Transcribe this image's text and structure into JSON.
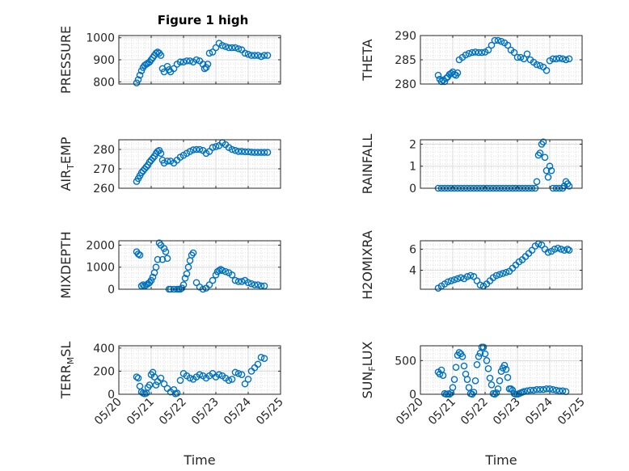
{
  "figure": {
    "title": "Figure 1 high"
  },
  "chart_data": [
    {
      "type": "scatter",
      "title": "Figure 1 high",
      "ylabel": "PRESSURE",
      "xlabel": "",
      "ylim": [
        790,
        1010
      ],
      "yticks": [
        800,
        900,
        1000
      ],
      "ytick_labels": [
        "800",
        "900",
        "1000"
      ],
      "xlim": [
        0,
        5
      ],
      "xtick_labels": [],
      "x": [
        0.55,
        0.6,
        0.65,
        0.7,
        0.75,
        0.8,
        0.85,
        0.9,
        0.95,
        1.0,
        1.05,
        1.1,
        1.15,
        1.2,
        1.25,
        1.3,
        1.35,
        1.4,
        1.5,
        1.55,
        1.6,
        1.7,
        1.8,
        1.9,
        2.0,
        2.1,
        2.2,
        2.3,
        2.4,
        2.5,
        2.6,
        2.65,
        2.7,
        2.75,
        2.8,
        2.9,
        3.0,
        3.1,
        3.2,
        3.3,
        3.4,
        3.5,
        3.6,
        3.7,
        3.8,
        3.9,
        4.0,
        4.1,
        4.2,
        4.3,
        4.4,
        4.5,
        4.6
      ],
      "y": [
        795,
        810,
        830,
        850,
        865,
        875,
        880,
        885,
        890,
        900,
        910,
        920,
        930,
        935,
        930,
        920,
        860,
        845,
        870,
        855,
        845,
        860,
        880,
        890,
        890,
        895,
        895,
        890,
        900,
        895,
        880,
        860,
        865,
        880,
        930,
        935,
        955,
        975,
        965,
        960,
        955,
        955,
        955,
        950,
        945,
        930,
        925,
        920,
        920,
        920,
        915,
        920,
        920
      ],
      "series_name": "",
      "grid": true,
      "minor_grid": true
    },
    {
      "type": "scatter",
      "title": "",
      "ylabel": "THETA",
      "xlabel": "",
      "ylim": [
        280,
        290
      ],
      "yticks": [
        280,
        285,
        290
      ],
      "ytick_labels": [
        "280",
        "285",
        "290"
      ],
      "xlim": [
        0,
        5
      ],
      "xtick_labels": [],
      "x": [
        0.55,
        0.6,
        0.65,
        0.7,
        0.75,
        0.8,
        0.85,
        0.9,
        0.95,
        1.0,
        1.05,
        1.1,
        1.15,
        1.2,
        1.3,
        1.4,
        1.5,
        1.6,
        1.7,
        1.8,
        1.9,
        2.0,
        2.1,
        2.2,
        2.3,
        2.4,
        2.5,
        2.6,
        2.7,
        2.8,
        2.9,
        3.0,
        3.1,
        3.2,
        3.3,
        3.4,
        3.5,
        3.6,
        3.7,
        3.8,
        3.9,
        4.0,
        4.1,
        4.2,
        4.3,
        4.4,
        4.5,
        4.6
      ],
      "y": [
        281.8,
        281,
        280.5,
        280.8,
        280.5,
        281.2,
        281.5,
        282,
        282.2,
        282.5,
        282,
        281.8,
        282.3,
        285,
        285.5,
        286,
        286.3,
        286.5,
        286.6,
        286.5,
        286.5,
        286.6,
        287,
        288,
        289,
        289,
        288.8,
        288.5,
        288,
        287,
        286.5,
        285.5,
        285.5,
        285.2,
        286.2,
        285,
        284.5,
        284,
        283.8,
        283.5,
        282.8,
        284.8,
        285.2,
        285.2,
        285.3,
        285.2,
        285,
        285.2
      ],
      "series_name": "",
      "grid": true,
      "minor_grid": true
    },
    {
      "type": "scatter",
      "title": "",
      "ylabel": "AIR_TEMP",
      "ylabel_main": "AIR",
      "ylabel_sub": "T",
      "ylabel_rest": "EMP",
      "xlabel": "",
      "ylim": [
        260,
        285
      ],
      "yticks": [
        260,
        270,
        280
      ],
      "ytick_labels": [
        "260",
        "270",
        "280"
      ],
      "xlim": [
        0,
        5
      ],
      "xtick_labels": [],
      "x": [
        0.55,
        0.6,
        0.65,
        0.7,
        0.75,
        0.8,
        0.85,
        0.9,
        0.95,
        1.0,
        1.05,
        1.1,
        1.15,
        1.2,
        1.25,
        1.3,
        1.35,
        1.4,
        1.5,
        1.6,
        1.7,
        1.8,
        1.9,
        2.0,
        2.1,
        2.2,
        2.3,
        2.4,
        2.5,
        2.6,
        2.7,
        2.8,
        2.9,
        3.0,
        3.1,
        3.2,
        3.3,
        3.4,
        3.5,
        3.6,
        3.7,
        3.8,
        3.9,
        4.0,
        4.1,
        4.2,
        4.3,
        4.4,
        4.5,
        4.6
      ],
      "y": [
        263.5,
        265,
        266.5,
        268,
        269,
        270,
        271,
        272,
        273.5,
        274.5,
        275.5,
        276.5,
        278,
        279,
        279.5,
        278,
        274.5,
        273,
        274,
        274,
        273,
        274.5,
        276,
        277,
        278,
        279,
        279.8,
        280,
        280,
        279.5,
        278,
        279,
        281,
        281.5,
        282,
        283.5,
        282.5,
        281,
        280,
        279.5,
        279,
        279,
        278.8,
        278.8,
        278.6,
        278.5,
        278.5,
        278.5,
        278.5,
        278.5
      ],
      "series_name": "",
      "grid": true,
      "minor_grid": true
    },
    {
      "type": "scatter",
      "title": "",
      "ylabel": "RAINFALL",
      "xlabel": "",
      "ylim": [
        0,
        2.2
      ],
      "yticks": [
        0,
        1,
        2
      ],
      "ytick_labels": [
        "0",
        "1",
        "2"
      ],
      "xlim": [
        0,
        5
      ],
      "xtick_labels": [],
      "x": [
        0.55,
        0.65,
        0.75,
        0.85,
        0.95,
        1.05,
        1.15,
        1.25,
        1.35,
        1.45,
        1.55,
        1.65,
        1.75,
        1.85,
        1.95,
        2.05,
        2.15,
        2.25,
        2.35,
        2.45,
        2.55,
        2.65,
        2.75,
        2.85,
        2.95,
        3.05,
        3.15,
        3.25,
        3.35,
        3.45,
        3.55,
        3.6,
        3.65,
        3.7,
        3.75,
        3.8,
        3.85,
        3.9,
        3.95,
        4.0,
        4.05,
        4.1,
        4.2,
        4.3,
        4.4,
        4.45,
        4.5,
        4.55,
        4.6
      ],
      "y": [
        0,
        0,
        0,
        0,
        0,
        0,
        0,
        0,
        0,
        0,
        0,
        0,
        0,
        0,
        0,
        0,
        0,
        0,
        0,
        0,
        0,
        0,
        0,
        0,
        0,
        0,
        0,
        0,
        0,
        0,
        0,
        0.3,
        1.5,
        1.6,
        2.0,
        2.1,
        1.4,
        0.8,
        0.5,
        1.0,
        0.8,
        0,
        0,
        0,
        0,
        0.1,
        0.3,
        0.2,
        0.1
      ],
      "series_name": "",
      "grid": true,
      "minor_grid": true
    },
    {
      "type": "scatter",
      "title": "",
      "ylabel": "MIXDEPTH",
      "xlabel": "",
      "ylim": [
        0,
        2200
      ],
      "yticks": [
        0,
        1000,
        2000
      ],
      "ytick_labels": [
        "0",
        "1000",
        "2000"
      ],
      "xlim": [
        0,
        5
      ],
      "xtick_labels": [],
      "x": [
        0.55,
        0.6,
        0.65,
        0.7,
        0.75,
        0.8,
        0.85,
        0.9,
        0.95,
        1.0,
        1.05,
        1.1,
        1.15,
        1.2,
        1.25,
        1.3,
        1.35,
        1.4,
        1.45,
        1.5,
        1.55,
        1.6,
        1.7,
        1.8,
        1.85,
        1.9,
        1.95,
        2.0,
        2.05,
        2.1,
        2.15,
        2.2,
        2.25,
        2.3,
        2.4,
        2.5,
        2.6,
        2.7,
        2.8,
        2.9,
        3.0,
        3.05,
        3.1,
        3.15,
        3.2,
        3.3,
        3.4,
        3.5,
        3.6,
        3.7,
        3.8,
        3.9,
        4.0,
        4.1,
        4.2,
        4.3,
        4.4,
        4.5
      ],
      "y": [
        1700,
        1600,
        1550,
        150,
        200,
        150,
        200,
        250,
        300,
        400,
        550,
        750,
        1000,
        1350,
        2100,
        2000,
        1350,
        1850,
        1700,
        1400,
        0,
        0,
        0,
        0,
        0,
        0,
        50,
        200,
        500,
        700,
        1000,
        1300,
        1550,
        1650,
        300,
        100,
        0,
        50,
        200,
        400,
        650,
        800,
        850,
        900,
        850,
        800,
        750,
        650,
        400,
        350,
        350,
        400,
        300,
        250,
        200,
        200,
        150,
        150
      ],
      "series_name": "",
      "grid": true,
      "minor_grid": true
    },
    {
      "type": "scatter",
      "title": "",
      "ylabel": "H2OMIXRA",
      "xlabel": "",
      "ylim": [
        2.2,
        6.8
      ],
      "yticks": [
        4,
        6
      ],
      "ytick_labels": [
        "4",
        "6"
      ],
      "xlim": [
        0,
        5
      ],
      "xtick_labels": [],
      "x": [
        0.55,
        0.65,
        0.75,
        0.85,
        0.95,
        1.05,
        1.15,
        1.25,
        1.35,
        1.45,
        1.55,
        1.65,
        1.75,
        1.85,
        1.95,
        2.05,
        2.15,
        2.25,
        2.35,
        2.45,
        2.55,
        2.65,
        2.75,
        2.85,
        2.95,
        3.05,
        3.15,
        3.25,
        3.35,
        3.45,
        3.55,
        3.65,
        3.75,
        3.85,
        3.95,
        4.05,
        4.15,
        4.25,
        4.35,
        4.45,
        4.55,
        4.6
      ],
      "y": [
        2.3,
        2.5,
        2.7,
        2.9,
        3.0,
        3.1,
        3.2,
        3.3,
        3.2,
        3.4,
        3.5,
        3.4,
        3.0,
        2.6,
        2.5,
        2.7,
        3.0,
        3.3,
        3.5,
        3.6,
        3.7,
        3.8,
        3.9,
        4.2,
        4.5,
        4.8,
        5.0,
        5.3,
        5.6,
        5.9,
        6.3,
        6.5,
        6.4,
        6.0,
        5.7,
        5.8,
        6.0,
        6.1,
        6.0,
        5.9,
        6.0,
        5.9
      ],
      "series_name": "",
      "grid": true,
      "minor_grid": true
    },
    {
      "type": "scatter",
      "title": "",
      "ylabel": "TERR_MSL",
      "ylabel_main": "TERR",
      "ylabel_sub": "M",
      "ylabel_rest": "SL",
      "xlabel": "Time",
      "ylim": [
        0,
        420
      ],
      "yticks": [
        0,
        200,
        400
      ],
      "ytick_labels": [
        "0",
        "200",
        "400"
      ],
      "xlim": [
        0,
        5
      ],
      "xtick_labels": [
        "05/20",
        "05/21",
        "05/22",
        "05/23",
        "05/24",
        "05/25"
      ],
      "x": [
        0.55,
        0.6,
        0.65,
        0.7,
        0.75,
        0.8,
        0.85,
        0.9,
        0.95,
        1.0,
        1.05,
        1.1,
        1.15,
        1.2,
        1.3,
        1.4,
        1.5,
        1.6,
        1.7,
        1.75,
        1.8,
        1.9,
        2.0,
        2.1,
        2.2,
        2.3,
        2.4,
        2.5,
        2.6,
        2.7,
        2.8,
        2.9,
        3.0,
        3.1,
        3.2,
        3.3,
        3.4,
        3.5,
        3.6,
        3.7,
        3.8,
        3.9,
        4.0,
        4.1,
        4.2,
        4.3,
        4.4,
        4.5
      ],
      "y": [
        150,
        140,
        70,
        20,
        10,
        5,
        10,
        60,
        80,
        170,
        190,
        150,
        80,
        110,
        140,
        90,
        50,
        20,
        40,
        5,
        10,
        120,
        180,
        160,
        140,
        130,
        150,
        170,
        160,
        140,
        160,
        180,
        150,
        170,
        160,
        140,
        120,
        130,
        190,
        180,
        170,
        90,
        130,
        200,
        230,
        260,
        320,
        310
      ],
      "series_name": "",
      "grid": true,
      "minor_grid": true
    },
    {
      "type": "scatter",
      "title": "",
      "ylabel": "SUN_FLUX",
      "ylabel_main": "SUN",
      "ylabel_sub": "F",
      "ylabel_rest": "LUX",
      "xlabel": "Time",
      "ylim": [
        0,
        720
      ],
      "yticks": [
        0,
        500
      ],
      "ytick_labels": [
        "0",
        "500"
      ],
      "xlim": [
        0,
        5
      ],
      "xtick_labels": [
        "05/20",
        "05/21",
        "05/22",
        "05/23",
        "05/24",
        "05/25"
      ],
      "x": [
        0.55,
        0.6,
        0.65,
        0.7,
        0.75,
        0.8,
        0.85,
        0.9,
        0.95,
        1.0,
        1.05,
        1.1,
        1.15,
        1.2,
        1.25,
        1.3,
        1.35,
        1.4,
        1.45,
        1.5,
        1.55,
        1.6,
        1.65,
        1.7,
        1.75,
        1.8,
        1.85,
        1.9,
        1.95,
        2.0,
        2.05,
        2.1,
        2.15,
        2.2,
        2.25,
        2.3,
        2.35,
        2.4,
        2.45,
        2.5,
        2.55,
        2.6,
        2.65,
        2.7,
        2.75,
        2.8,
        2.85,
        2.9,
        2.95,
        3.0,
        3.05,
        3.1,
        3.15,
        3.2,
        3.3,
        3.4,
        3.5,
        3.6,
        3.7,
        3.8,
        3.9,
        4.0,
        4.1,
        4.2,
        4.3,
        4.4,
        4.5
      ],
      "y": [
        330,
        300,
        360,
        280,
        10,
        0,
        5,
        0,
        20,
        100,
        220,
        400,
        580,
        620,
        600,
        560,
        420,
        300,
        220,
        100,
        10,
        0,
        30,
        200,
        440,
        560,
        610,
        700,
        700,
        600,
        500,
        380,
        240,
        140,
        10,
        0,
        20,
        80,
        200,
        340,
        390,
        430,
        370,
        250,
        80,
        80,
        60,
        10,
        0,
        0,
        10,
        20,
        30,
        40,
        50,
        60,
        60,
        70,
        70,
        70,
        80,
        80,
        70,
        60,
        50,
        50,
        40
      ],
      "series_name": "",
      "grid": true,
      "minor_grid": true
    }
  ]
}
